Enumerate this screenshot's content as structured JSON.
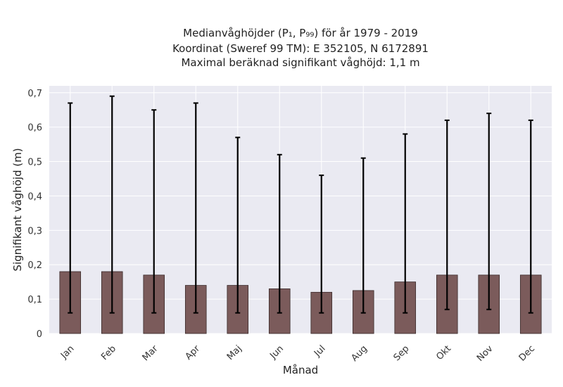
{
  "chart_data": {
    "type": "bar",
    "title_lines": [
      "Medianvåghöjder (P₁, P₉₉) för år 1979 - 2019",
      "Koordinat (Sweref 99 TM): E 352105, N 6172891",
      "Maximal beräknad signifikant våghöjd: 1,1 m"
    ],
    "xlabel": "Månad",
    "ylabel": "Signifikant våghöjd (m)",
    "categories": [
      "Jan",
      "Feb",
      "Mar",
      "Apr",
      "Maj",
      "Jun",
      "Jul",
      "Aug",
      "Sep",
      "Okt",
      "Nov",
      "Dec"
    ],
    "values": [
      0.18,
      0.18,
      0.17,
      0.14,
      0.14,
      0.13,
      0.12,
      0.125,
      0.15,
      0.17,
      0.17,
      0.17
    ],
    "p1": [
      0.06,
      0.06,
      0.06,
      0.06,
      0.06,
      0.06,
      0.06,
      0.06,
      0.06,
      0.07,
      0.07,
      0.06
    ],
    "p99": [
      0.67,
      0.69,
      0.65,
      0.67,
      0.57,
      0.52,
      0.46,
      0.51,
      0.58,
      0.62,
      0.64,
      0.62
    ],
    "ylim": [
      0,
      0.72
    ],
    "yticks": [
      0,
      0.1,
      0.2,
      0.3,
      0.4,
      0.5,
      0.6,
      0.7
    ],
    "ytick_labels": [
      "0",
      "0,1",
      "0,2",
      "0,3",
      "0,4",
      "0,5",
      "0,6",
      "0,7"
    ],
    "grid": true,
    "colors": {
      "bar": "#7b5b5b",
      "bar_edge": "#3a2a2a",
      "plot_bg": "#eaeaf2",
      "grid": "#ffffff",
      "error_bar": "#000000"
    }
  }
}
